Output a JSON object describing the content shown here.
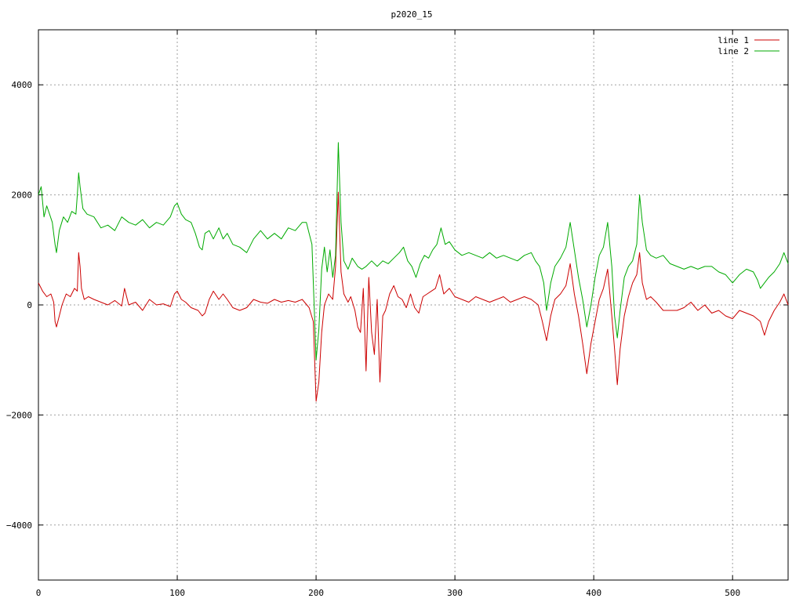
{
  "chart_data": {
    "type": "line",
    "title": "p2020_15",
    "xlabel": "",
    "ylabel": "",
    "xlim": [
      0,
      540
    ],
    "ylim": [
      -5000,
      5000
    ],
    "x_ticks": [
      0,
      100,
      200,
      300,
      400,
      500
    ],
    "y_ticks": [
      -4000,
      -2000,
      0,
      2000,
      4000
    ],
    "x_tick_labels": [
      "0",
      "100",
      "200",
      "300",
      "400",
      "500"
    ],
    "y_tick_labels": [
      "−4000",
      "−2000",
      "0",
      "2000",
      "4000"
    ],
    "grid": true,
    "legend_position": "top-right",
    "series": [
      {
        "name": "line 1",
        "color": "#cc0000",
        "points": [
          [
            0,
            400
          ],
          [
            3,
            250
          ],
          [
            6,
            150
          ],
          [
            9,
            200
          ],
          [
            11,
            50
          ],
          [
            12,
            -300
          ],
          [
            13,
            -400
          ],
          [
            15,
            -200
          ],
          [
            17,
            0
          ],
          [
            20,
            200
          ],
          [
            23,
            150
          ],
          [
            26,
            300
          ],
          [
            28,
            250
          ],
          [
            29,
            950
          ],
          [
            30,
            700
          ],
          [
            31,
            300
          ],
          [
            33,
            100
          ],
          [
            36,
            150
          ],
          [
            40,
            100
          ],
          [
            45,
            50
          ],
          [
            50,
            0
          ],
          [
            55,
            80
          ],
          [
            60,
            -20
          ],
          [
            62,
            300
          ],
          [
            65,
            0
          ],
          [
            70,
            50
          ],
          [
            75,
            -100
          ],
          [
            80,
            100
          ],
          [
            85,
            0
          ],
          [
            90,
            20
          ],
          [
            95,
            -30
          ],
          [
            98,
            200
          ],
          [
            100,
            250
          ],
          [
            103,
            100
          ],
          [
            106,
            50
          ],
          [
            110,
            -50
          ],
          [
            115,
            -100
          ],
          [
            118,
            -200
          ],
          [
            120,
            -150
          ],
          [
            123,
            100
          ],
          [
            126,
            250
          ],
          [
            130,
            100
          ],
          [
            133,
            200
          ],
          [
            136,
            100
          ],
          [
            140,
            -50
          ],
          [
            145,
            -100
          ],
          [
            150,
            -50
          ],
          [
            155,
            100
          ],
          [
            160,
            50
          ],
          [
            165,
            30
          ],
          [
            170,
            100
          ],
          [
            175,
            50
          ],
          [
            180,
            80
          ],
          [
            185,
            50
          ],
          [
            190,
            100
          ],
          [
            195,
            -50
          ],
          [
            198,
            -300
          ],
          [
            200,
            -1750
          ],
          [
            202,
            -1400
          ],
          [
            204,
            -500
          ],
          [
            206,
            0
          ],
          [
            209,
            200
          ],
          [
            212,
            100
          ],
          [
            214,
            700
          ],
          [
            216,
            2050
          ],
          [
            218,
            600
          ],
          [
            220,
            200
          ],
          [
            223,
            50
          ],
          [
            225,
            150
          ],
          [
            228,
            -100
          ],
          [
            230,
            -400
          ],
          [
            232,
            -500
          ],
          [
            234,
            300
          ],
          [
            236,
            -1200
          ],
          [
            238,
            500
          ],
          [
            240,
            -500
          ],
          [
            242,
            -900
          ],
          [
            244,
            100
          ],
          [
            246,
            -1400
          ],
          [
            248,
            -200
          ],
          [
            250,
            -100
          ],
          [
            253,
            200
          ],
          [
            256,
            350
          ],
          [
            259,
            150
          ],
          [
            262,
            100
          ],
          [
            265,
            -50
          ],
          [
            268,
            200
          ],
          [
            271,
            -50
          ],
          [
            274,
            -150
          ],
          [
            277,
            150
          ],
          [
            280,
            200
          ],
          [
            283,
            250
          ],
          [
            286,
            300
          ],
          [
            289,
            550
          ],
          [
            292,
            200
          ],
          [
            296,
            300
          ],
          [
            300,
            150
          ],
          [
            305,
            100
          ],
          [
            310,
            50
          ],
          [
            315,
            150
          ],
          [
            320,
            100
          ],
          [
            325,
            50
          ],
          [
            330,
            100
          ],
          [
            335,
            150
          ],
          [
            340,
            50
          ],
          [
            345,
            100
          ],
          [
            350,
            150
          ],
          [
            355,
            100
          ],
          [
            360,
            0
          ],
          [
            363,
            -300
          ],
          [
            366,
            -650
          ],
          [
            369,
            -200
          ],
          [
            372,
            100
          ],
          [
            376,
            200
          ],
          [
            380,
            350
          ],
          [
            383,
            750
          ],
          [
            386,
            200
          ],
          [
            389,
            -200
          ],
          [
            392,
            -700
          ],
          [
            395,
            -1250
          ],
          [
            398,
            -700
          ],
          [
            401,
            -300
          ],
          [
            404,
            100
          ],
          [
            407,
            300
          ],
          [
            410,
            650
          ],
          [
            413,
            -200
          ],
          [
            415,
            -800
          ],
          [
            417,
            -1450
          ],
          [
            419,
            -800
          ],
          [
            422,
            -200
          ],
          [
            425,
            150
          ],
          [
            428,
            400
          ],
          [
            431,
            550
          ],
          [
            433,
            950
          ],
          [
            435,
            400
          ],
          [
            438,
            100
          ],
          [
            441,
            150
          ],
          [
            445,
            50
          ],
          [
            450,
            -100
          ],
          [
            455,
            -100
          ],
          [
            460,
            -100
          ],
          [
            465,
            -50
          ],
          [
            470,
            50
          ],
          [
            475,
            -100
          ],
          [
            480,
            0
          ],
          [
            485,
            -150
          ],
          [
            490,
            -100
          ],
          [
            495,
            -200
          ],
          [
            500,
            -250
          ],
          [
            505,
            -100
          ],
          [
            510,
            -150
          ],
          [
            515,
            -200
          ],
          [
            520,
            -300
          ],
          [
            523,
            -550
          ],
          [
            526,
            -300
          ],
          [
            530,
            -100
          ],
          [
            534,
            50
          ],
          [
            537,
            200
          ],
          [
            540,
            0
          ]
        ]
      },
      {
        "name": "line 2",
        "color": "#00aa00",
        "points": [
          [
            0,
            2000
          ],
          [
            2,
            2150
          ],
          [
            4,
            1600
          ],
          [
            6,
            1800
          ],
          [
            8,
            1650
          ],
          [
            10,
            1500
          ],
          [
            12,
            1100
          ],
          [
            13,
            950
          ],
          [
            15,
            1350
          ],
          [
            18,
            1600
          ],
          [
            21,
            1500
          ],
          [
            24,
            1700
          ],
          [
            27,
            1650
          ],
          [
            28,
            2000
          ],
          [
            29,
            2400
          ],
          [
            30,
            2150
          ],
          [
            32,
            1750
          ],
          [
            35,
            1650
          ],
          [
            40,
            1600
          ],
          [
            45,
            1400
          ],
          [
            50,
            1450
          ],
          [
            55,
            1350
          ],
          [
            60,
            1600
          ],
          [
            65,
            1500
          ],
          [
            70,
            1450
          ],
          [
            75,
            1550
          ],
          [
            80,
            1400
          ],
          [
            85,
            1500
          ],
          [
            90,
            1450
          ],
          [
            95,
            1600
          ],
          [
            98,
            1800
          ],
          [
            100,
            1850
          ],
          [
            103,
            1650
          ],
          [
            106,
            1550
          ],
          [
            110,
            1500
          ],
          [
            113,
            1300
          ],
          [
            116,
            1050
          ],
          [
            118,
            1000
          ],
          [
            120,
            1300
          ],
          [
            123,
            1350
          ],
          [
            126,
            1200
          ],
          [
            130,
            1400
          ],
          [
            133,
            1200
          ],
          [
            136,
            1300
          ],
          [
            140,
            1100
          ],
          [
            145,
            1050
          ],
          [
            150,
            950
          ],
          [
            155,
            1200
          ],
          [
            160,
            1350
          ],
          [
            165,
            1200
          ],
          [
            170,
            1300
          ],
          [
            175,
            1200
          ],
          [
            180,
            1400
          ],
          [
            185,
            1350
          ],
          [
            190,
            1500
          ],
          [
            193,
            1500
          ],
          [
            195,
            1300
          ],
          [
            197,
            1100
          ],
          [
            200,
            -1000
          ],
          [
            202,
            -450
          ],
          [
            204,
            650
          ],
          [
            206,
            1050
          ],
          [
            208,
            600
          ],
          [
            210,
            1000
          ],
          [
            212,
            500
          ],
          [
            214,
            900
          ],
          [
            216,
            2950
          ],
          [
            218,
            1500
          ],
          [
            220,
            800
          ],
          [
            223,
            650
          ],
          [
            226,
            850
          ],
          [
            230,
            700
          ],
          [
            233,
            650
          ],
          [
            236,
            700
          ],
          [
            240,
            800
          ],
          [
            244,
            700
          ],
          [
            248,
            800
          ],
          [
            252,
            750
          ],
          [
            256,
            850
          ],
          [
            260,
            950
          ],
          [
            263,
            1050
          ],
          [
            266,
            800
          ],
          [
            269,
            700
          ],
          [
            272,
            500
          ],
          [
            275,
            750
          ],
          [
            278,
            900
          ],
          [
            281,
            850
          ],
          [
            284,
            1000
          ],
          [
            287,
            1100
          ],
          [
            290,
            1400
          ],
          [
            293,
            1100
          ],
          [
            296,
            1150
          ],
          [
            300,
            1000
          ],
          [
            305,
            900
          ],
          [
            310,
            950
          ],
          [
            315,
            900
          ],
          [
            320,
            850
          ],
          [
            325,
            950
          ],
          [
            330,
            850
          ],
          [
            335,
            900
          ],
          [
            340,
            850
          ],
          [
            345,
            800
          ],
          [
            350,
            900
          ],
          [
            355,
            950
          ],
          [
            358,
            800
          ],
          [
            361,
            700
          ],
          [
            364,
            400
          ],
          [
            366,
            -100
          ],
          [
            369,
            400
          ],
          [
            372,
            700
          ],
          [
            376,
            850
          ],
          [
            380,
            1050
          ],
          [
            383,
            1500
          ],
          [
            386,
            1000
          ],
          [
            389,
            500
          ],
          [
            392,
            100
          ],
          [
            395,
            -400
          ],
          [
            398,
            0
          ],
          [
            401,
            500
          ],
          [
            404,
            900
          ],
          [
            407,
            1050
          ],
          [
            410,
            1500
          ],
          [
            413,
            700
          ],
          [
            415,
            -200
          ],
          [
            417,
            -600
          ],
          [
            419,
            -100
          ],
          [
            422,
            500
          ],
          [
            425,
            700
          ],
          [
            428,
            800
          ],
          [
            431,
            1100
          ],
          [
            433,
            2000
          ],
          [
            435,
            1500
          ],
          [
            438,
            1000
          ],
          [
            441,
            900
          ],
          [
            445,
            850
          ],
          [
            450,
            900
          ],
          [
            455,
            750
          ],
          [
            460,
            700
          ],
          [
            465,
            650
          ],
          [
            470,
            700
          ],
          [
            475,
            650
          ],
          [
            480,
            700
          ],
          [
            485,
            700
          ],
          [
            490,
            600
          ],
          [
            495,
            550
          ],
          [
            500,
            400
          ],
          [
            505,
            550
          ],
          [
            510,
            650
          ],
          [
            515,
            600
          ],
          [
            518,
            450
          ],
          [
            520,
            300
          ],
          [
            523,
            400
          ],
          [
            526,
            500
          ],
          [
            530,
            600
          ],
          [
            534,
            750
          ],
          [
            537,
            950
          ],
          [
            540,
            750
          ]
        ]
      }
    ]
  }
}
